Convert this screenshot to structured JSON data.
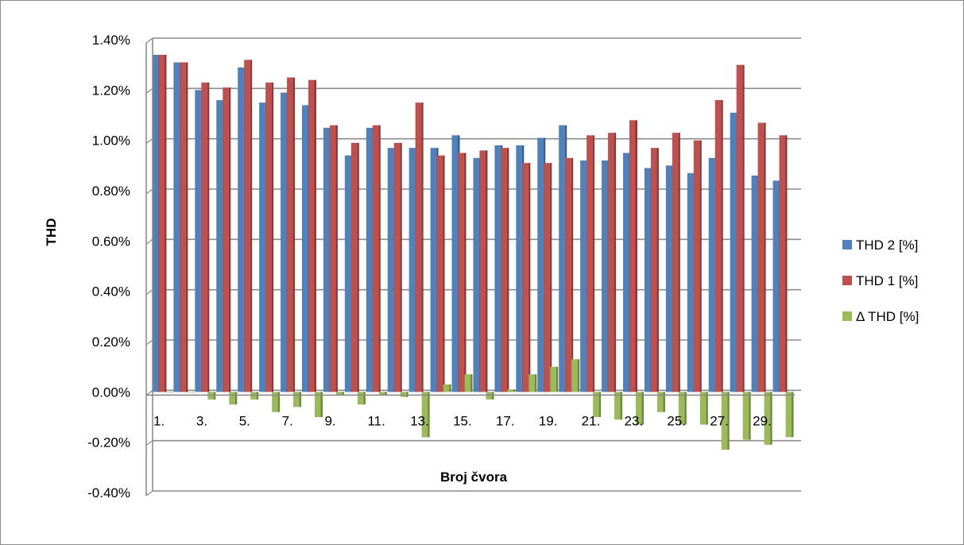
{
  "chart_data": {
    "type": "bar",
    "xlabel": "Broj čvora",
    "ylabel": "THD",
    "ylim": [
      -0.4,
      1.4
    ],
    "yticks": [
      "1.40%",
      "1.20%",
      "1.00%",
      "0.80%",
      "0.60%",
      "0.40%",
      "0.20%",
      "0.00%",
      "-0.20%",
      "-0.40%"
    ],
    "categories": [
      "1.",
      "2.",
      "3.",
      "4.",
      "5.",
      "6.",
      "7.",
      "8.",
      "9.",
      "10.",
      "11.",
      "12.",
      "13.",
      "14.",
      "15.",
      "16.",
      "17.",
      "18.",
      "19.",
      "20.",
      "21.",
      "22.",
      "23.",
      "24.",
      "25.",
      "26.",
      "27.",
      "28.",
      "29.",
      "30."
    ],
    "category_labels_shown": [
      "1.",
      "3.",
      "5.",
      "7.",
      "9.",
      "11.",
      "13.",
      "15.",
      "17.",
      "19.",
      "21.",
      "23.",
      "25.",
      "27.",
      "29."
    ],
    "legend_position": "right",
    "grid": true,
    "series": [
      {
        "name": "THD 2 [%]",
        "color": "#4f81bd",
        "values": [
          1.34,
          1.31,
          1.2,
          1.16,
          1.29,
          1.15,
          1.19,
          1.14,
          1.05,
          0.94,
          1.05,
          0.97,
          0.97,
          0.97,
          1.02,
          0.93,
          0.98,
          0.98,
          1.01,
          1.06,
          0.92,
          0.92,
          0.95,
          0.89,
          0.9,
          0.87,
          0.93,
          1.11,
          0.86,
          0.84
        ]
      },
      {
        "name": "THD 1 [%]",
        "color": "#c0504d",
        "values": [
          1.34,
          1.31,
          1.23,
          1.21,
          1.32,
          1.23,
          1.25,
          1.24,
          1.06,
          0.99,
          1.06,
          0.99,
          1.15,
          0.94,
          0.95,
          0.96,
          0.97,
          0.91,
          0.91,
          0.93,
          1.02,
          1.03,
          1.08,
          0.97,
          1.03,
          1.0,
          1.16,
          1.3,
          1.07,
          1.02
        ]
      },
      {
        "name": "Δ THD [%]",
        "color": "#9bbb59",
        "values": [
          0.0,
          0.0,
          -0.03,
          -0.05,
          -0.03,
          -0.08,
          -0.06,
          -0.1,
          -0.01,
          -0.05,
          -0.01,
          -0.02,
          -0.18,
          0.03,
          0.07,
          -0.03,
          0.01,
          0.07,
          0.1,
          0.13,
          -0.1,
          -0.11,
          -0.13,
          -0.08,
          -0.13,
          -0.13,
          -0.23,
          -0.19,
          -0.21,
          -0.18
        ]
      }
    ]
  }
}
